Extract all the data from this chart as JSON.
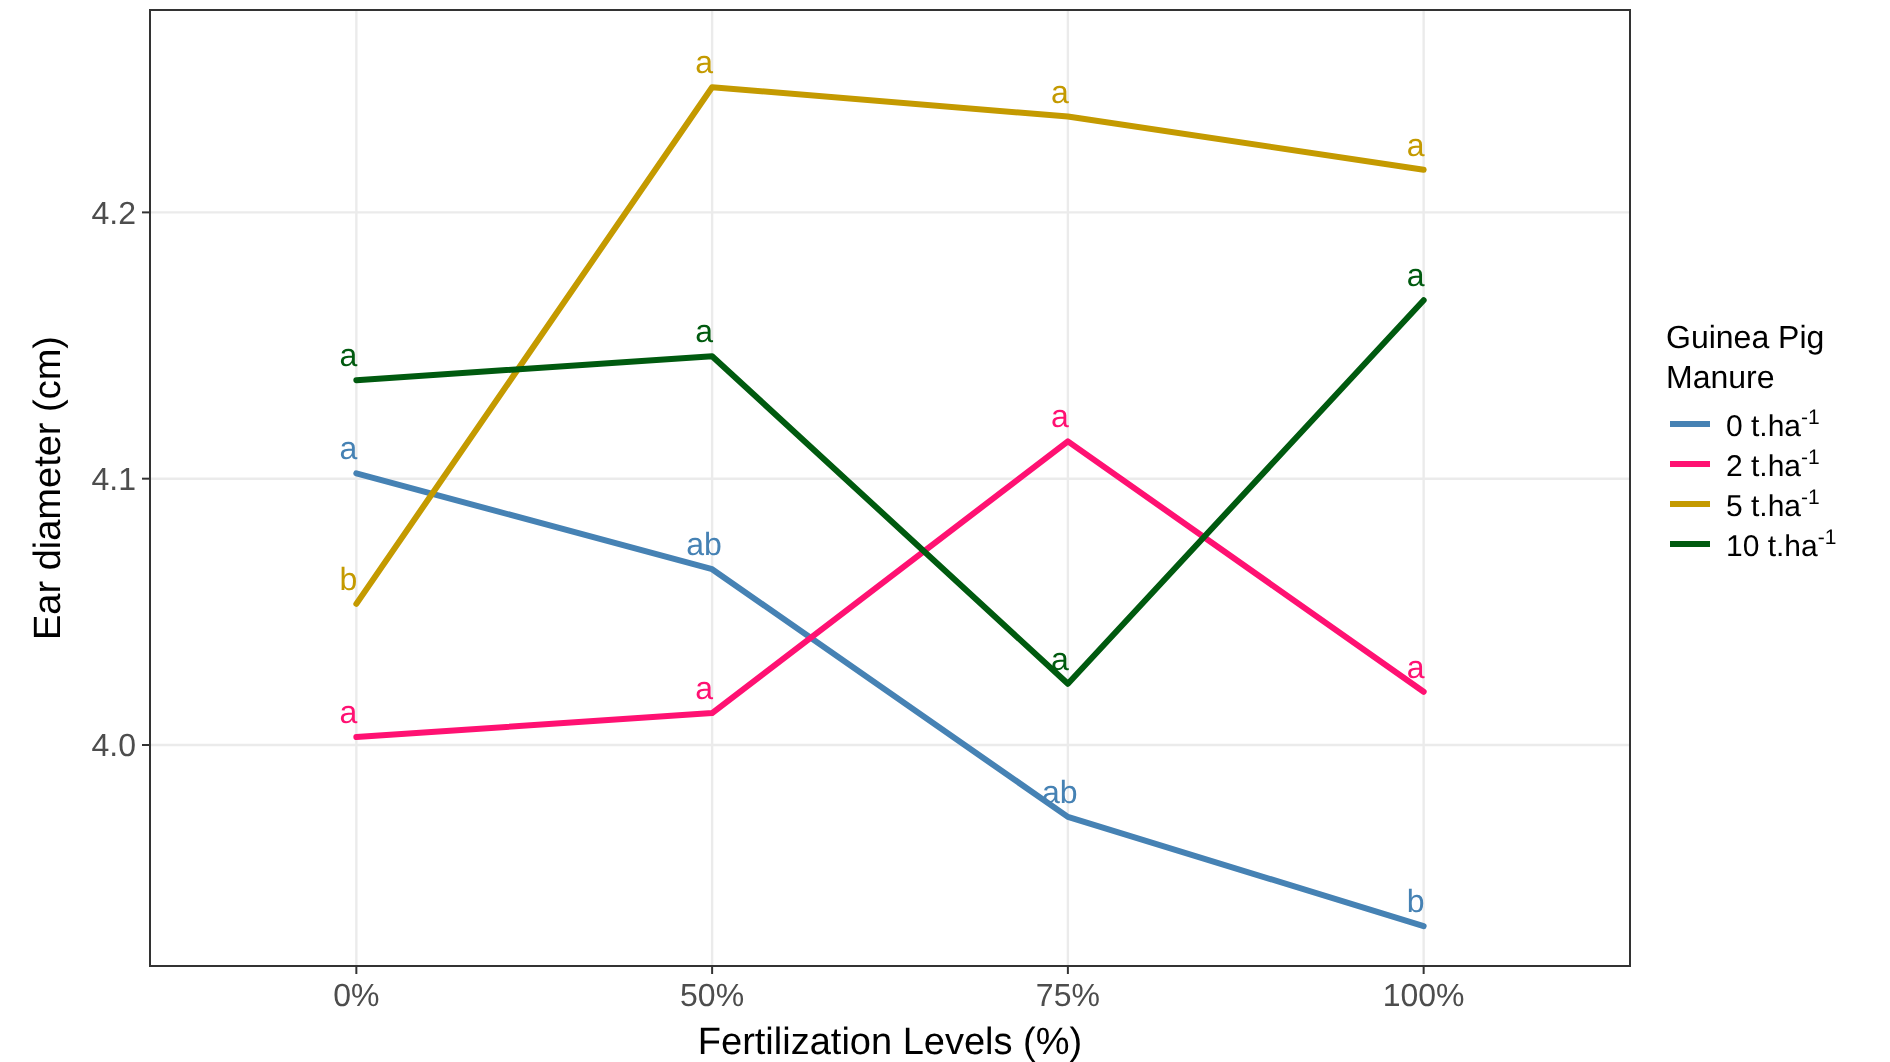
{
  "chart_data": {
    "type": "line",
    "xlabel": "Fertilization Levels (%)",
    "ylabel": "Ear diameter (cm)",
    "legend_title": "Guinea Pig Manure",
    "categories": [
      "0%",
      "50%",
      "75%",
      "100%"
    ],
    "ylim": [
      3.917,
      4.276
    ],
    "yticks": [
      {
        "value": 4.0,
        "label": "4.0"
      },
      {
        "value": 4.1,
        "label": "4.1"
      },
      {
        "value": 4.2,
        "label": "4.2"
      }
    ],
    "grid": true,
    "legend": "right",
    "marker": "none",
    "line_style": "solid",
    "series": [
      {
        "name": "0 t.ha$^{-1}$",
        "color": "#4682b4",
        "values": [
          4.102,
          4.066,
          3.973,
          3.932
        ],
        "value_labels": [
          "a",
          "ab",
          "ab",
          "b"
        ]
      },
      {
        "name": "2 t.ha$^{-1}$",
        "color": "#ff1172",
        "values": [
          4.003,
          4.012,
          4.114,
          4.02
        ],
        "value_labels": [
          "a",
          "a",
          "a",
          "a"
        ]
      },
      {
        "name": "5 t.ha$^{-1}$",
        "color": "#c49a00",
        "values": [
          4.053,
          4.247,
          4.236,
          4.216
        ],
        "value_labels": [
          "b",
          "a",
          "a",
          "a"
        ]
      },
      {
        "name": "10 t.ha$^{-1}$",
        "color": "#005a0f",
        "values": [
          4.137,
          4.146,
          4.023,
          4.167
        ],
        "value_labels": [
          "a",
          "a",
          "a",
          "a"
        ]
      }
    ]
  }
}
